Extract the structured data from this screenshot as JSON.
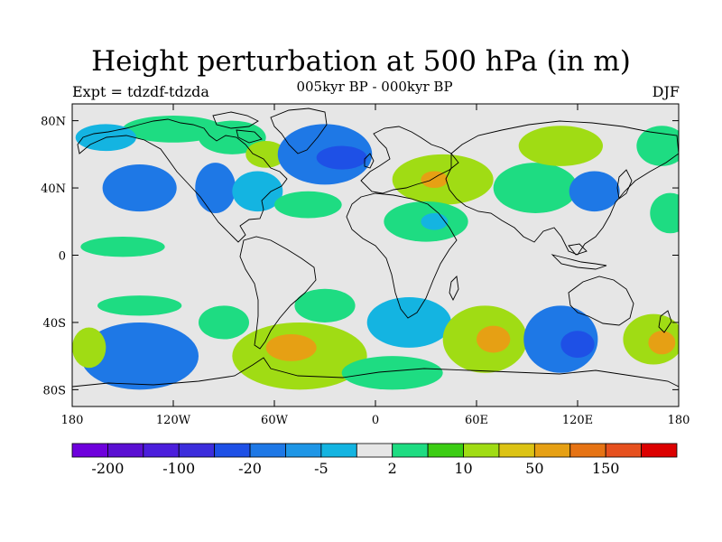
{
  "title": "Height perturbation at 500 hPa (in m)",
  "subtitle": "005kyr BP - 000kyr BP",
  "expt_label": "Expt = tdzdf-tdzda",
  "season": "DJF",
  "map": {
    "lon_range": [
      -180,
      180
    ],
    "lat_range": [
      -90,
      90
    ],
    "ocean_color": "#e6e6e6",
    "lat_ticks": [
      {
        "lat": 80,
        "label": "80N"
      },
      {
        "lat": 40,
        "label": "40N"
      },
      {
        "lat": 0,
        "label": "0"
      },
      {
        "lat": -40,
        "label": "40S"
      },
      {
        "lat": -80,
        "label": "80S"
      }
    ],
    "lon_ticks": [
      {
        "lon": -180,
        "label": "180"
      },
      {
        "lon": -120,
        "label": "120W"
      },
      {
        "lon": -60,
        "label": "60W"
      },
      {
        "lon": 0,
        "label": "0"
      },
      {
        "lon": 60,
        "label": "60E"
      },
      {
        "lon": 120,
        "label": "120E"
      },
      {
        "lon": 180,
        "label": "180"
      }
    ],
    "anomalies": [
      {
        "lon": -140,
        "lat": 40,
        "rx": 22,
        "ry": 14,
        "value": -20
      },
      {
        "lon": -120,
        "lat": 75,
        "rx": 30,
        "ry": 8,
        "value": 2
      },
      {
        "lon": -160,
        "lat": 70,
        "rx": 18,
        "ry": 8,
        "value": -5
      },
      {
        "lon": -85,
        "lat": 70,
        "rx": 20,
        "ry": 10,
        "value": 2
      },
      {
        "lon": -95,
        "lat": 40,
        "rx": 12,
        "ry": 15,
        "value": -20
      },
      {
        "lon": -70,
        "lat": 38,
        "rx": 15,
        "ry": 12,
        "value": -5
      },
      {
        "lon": -65,
        "lat": 60,
        "rx": 12,
        "ry": 8,
        "value": 10
      },
      {
        "lon": -30,
        "lat": 60,
        "rx": 28,
        "ry": 18,
        "value": -20
      },
      {
        "lon": -20,
        "lat": 58,
        "rx": 15,
        "ry": 7,
        "value": -50
      },
      {
        "lon": -40,
        "lat": 30,
        "rx": 20,
        "ry": 8,
        "value": 2
      },
      {
        "lon": 40,
        "lat": 45,
        "rx": 30,
        "ry": 15,
        "value": 10
      },
      {
        "lon": 35,
        "lat": 45,
        "rx": 8,
        "ry": 5,
        "value": 50
      },
      {
        "lon": 30,
        "lat": 20,
        "rx": 25,
        "ry": 12,
        "value": 2
      },
      {
        "lon": 35,
        "lat": 20,
        "rx": 8,
        "ry": 5,
        "value": -5
      },
      {
        "lon": 95,
        "lat": 40,
        "rx": 25,
        "ry": 15,
        "value": 2
      },
      {
        "lon": 110,
        "lat": 65,
        "rx": 25,
        "ry": 12,
        "value": 10
      },
      {
        "lon": 130,
        "lat": 38,
        "rx": 15,
        "ry": 12,
        "value": -20
      },
      {
        "lon": 170,
        "lat": 65,
        "rx": 15,
        "ry": 12,
        "value": 2
      },
      {
        "lon": -150,
        "lat": 5,
        "rx": 25,
        "ry": 6,
        "value": 2
      },
      {
        "lon": 175,
        "lat": 25,
        "rx": 12,
        "ry": 12,
        "value": 2
      },
      {
        "lon": -140,
        "lat": -30,
        "rx": 25,
        "ry": 6,
        "value": 2
      },
      {
        "lon": -140,
        "lat": -60,
        "rx": 35,
        "ry": 20,
        "value": -20
      },
      {
        "lon": -90,
        "lat": -40,
        "rx": 15,
        "ry": 10,
        "value": 2
      },
      {
        "lon": -30,
        "lat": -30,
        "rx": 18,
        "ry": 10,
        "value": 2
      },
      {
        "lon": -45,
        "lat": -60,
        "rx": 40,
        "ry": 20,
        "value": 10
      },
      {
        "lon": -50,
        "lat": -55,
        "rx": 15,
        "ry": 8,
        "value": 50
      },
      {
        "lon": 20,
        "lat": -40,
        "rx": 25,
        "ry": 15,
        "value": -5
      },
      {
        "lon": 10,
        "lat": -70,
        "rx": 30,
        "ry": 10,
        "value": 2
      },
      {
        "lon": 65,
        "lat": -50,
        "rx": 25,
        "ry": 20,
        "value": 10
      },
      {
        "lon": 70,
        "lat": -50,
        "rx": 10,
        "ry": 8,
        "value": 50
      },
      {
        "lon": 110,
        "lat": -50,
        "rx": 22,
        "ry": 20,
        "value": -20
      },
      {
        "lon": 120,
        "lat": -53,
        "rx": 10,
        "ry": 8,
        "value": -50
      },
      {
        "lon": 165,
        "lat": -50,
        "rx": 18,
        "ry": 15,
        "value": 10
      },
      {
        "lon": 170,
        "lat": -52,
        "rx": 8,
        "ry": 7,
        "value": 50
      },
      {
        "lon": -170,
        "lat": -55,
        "rx": 10,
        "ry": 12,
        "value": 10
      }
    ]
  },
  "colorbar": {
    "colors": [
      "#6e00dc",
      "#5a0fd2",
      "#4b1edc",
      "#3c2ddc",
      "#1e50e6",
      "#1e78e6",
      "#1e96e6",
      "#14b4e1",
      "#e6e6e6",
      "#1edc82",
      "#3ccd14",
      "#a0dc14",
      "#dcc314",
      "#e6a014",
      "#e67314",
      "#e6501e",
      "#dc0000"
    ],
    "labels": [
      {
        "boundary": 1,
        "text": "-200"
      },
      {
        "boundary": 3,
        "text": "-100"
      },
      {
        "boundary": 5,
        "text": "-20"
      },
      {
        "boundary": 7,
        "text": "-5"
      },
      {
        "boundary": 9,
        "text": "2"
      },
      {
        "boundary": 11,
        "text": "10"
      },
      {
        "boundary": 13,
        "text": "50"
      },
      {
        "boundary": 15,
        "text": "150"
      }
    ]
  }
}
